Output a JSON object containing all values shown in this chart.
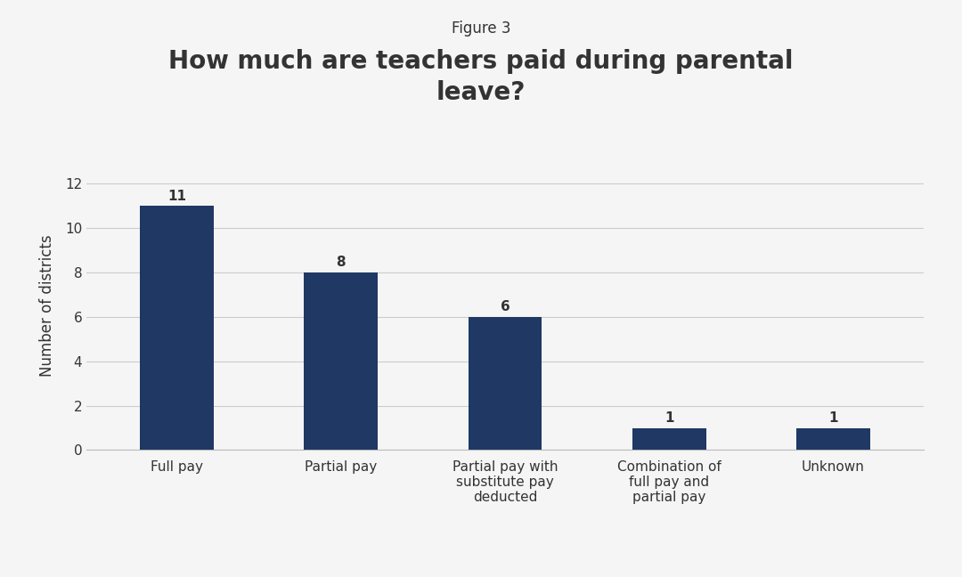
{
  "supertitle": "Figure 3",
  "title": "How much are teachers paid during parental\nleave?",
  "categories": [
    "Full pay",
    "Partial pay",
    "Partial pay with\nsubstitute pay\ndeducted",
    "Combination of\nfull pay and\npartial pay",
    "Unknown"
  ],
  "values": [
    11,
    8,
    6,
    1,
    1
  ],
  "bar_color": "#1f3864",
  "ylabel": "Number of districts",
  "ylim": [
    0,
    13
  ],
  "yticks": [
    0,
    2,
    4,
    6,
    8,
    10,
    12
  ],
  "background_color": "#f5f5f5",
  "supertitle_fontsize": 12,
  "title_fontsize": 20,
  "ylabel_fontsize": 12,
  "tick_label_fontsize": 11,
  "bar_label_fontsize": 11,
  "bar_width": 0.45,
  "grid_color": "#cccccc",
  "spine_color": "#bbbbbb",
  "text_color": "#333333"
}
